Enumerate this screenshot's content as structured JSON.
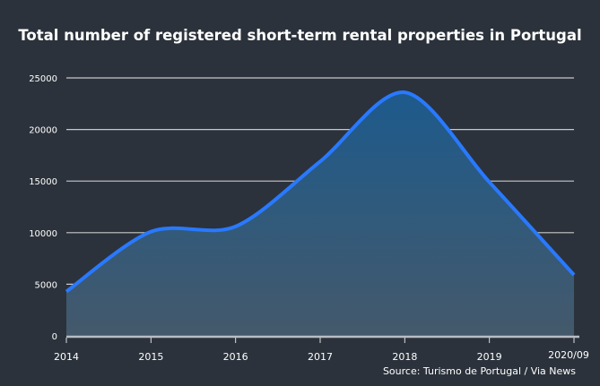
{
  "chart_data": {
    "type": "area",
    "title": "Total number of registered short-term rental properties in Portugal",
    "source": "Source: Turismo de Portugal / Via News",
    "categories": [
      "2014",
      "2015",
      "2016",
      "2017",
      "2018",
      "2019",
      "2020/09"
    ],
    "values": [
      4300,
      10100,
      10600,
      16900,
      23600,
      14900,
      5900
    ],
    "yticks": [
      0,
      5000,
      10000,
      15000,
      20000,
      25000
    ],
    "ylim": [
      0,
      25000
    ],
    "xlabel": "",
    "ylabel": "",
    "grid": true,
    "colors": {
      "line": "#2979ff",
      "fill_top": "#1d5a8c",
      "fill_bottom": "#44596b",
      "grid": "#c8c8c8"
    }
  }
}
